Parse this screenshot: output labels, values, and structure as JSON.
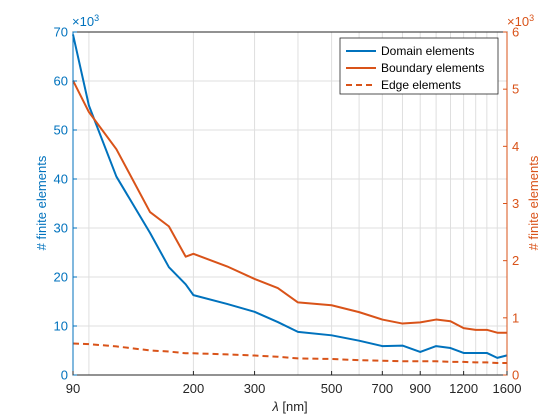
{
  "chart_data": {
    "type": "line",
    "xlabel_symbol": "λ",
    "xlabel_unit": "[nm]",
    "x_scale": "log",
    "xlim": [
      90,
      1600
    ],
    "x_ticks": [
      90,
      200,
      300,
      500,
      700,
      900,
      1200,
      1600
    ],
    "x_tick_labels": [
      "90",
      "200",
      "300",
      "500",
      "700",
      "900",
      "1200",
      "1600"
    ],
    "grid": true,
    "legend_position": "top-right",
    "left_axis": {
      "label": "# finite elements",
      "color": "#0072BD",
      "ylim": [
        0,
        70
      ],
      "ticks": [
        0,
        10,
        20,
        30,
        40,
        50,
        60,
        70
      ],
      "tick_labels": [
        "0",
        "10",
        "20",
        "30",
        "40",
        "50",
        "60",
        "70"
      ],
      "exponent_prefix": "×10",
      "exponent": "3"
    },
    "right_axis": {
      "label": "# finite elements",
      "color": "#D95319",
      "ylim": [
        0,
        6
      ],
      "ticks": [
        0,
        1,
        2,
        3,
        4,
        5,
        6
      ],
      "tick_labels": [
        "0",
        "1",
        "2",
        "3",
        "4",
        "5",
        "6"
      ],
      "exponent_prefix": "×10",
      "exponent": "3"
    },
    "series": [
      {
        "name": "Domain elements",
        "axis": "left",
        "color": "#0072BD",
        "style": "solid",
        "x": [
          90,
          100,
          120,
          150,
          170,
          190,
          200,
          250,
          300,
          350,
          400,
          500,
          600,
          700,
          800,
          900,
          1000,
          1100,
          1200,
          1300,
          1400,
          1500,
          1600
        ],
        "y": [
          69.5,
          55,
          40.5,
          29,
          22,
          18.5,
          16.3,
          14.5,
          12.9,
          10.8,
          8.8,
          8.1,
          7,
          5.9,
          6,
          4.7,
          5.9,
          5.5,
          4.5,
          4.5,
          4.5,
          3.5,
          4
        ]
      },
      {
        "name": "Boundary elements",
        "axis": "right",
        "color": "#D95319",
        "style": "solid",
        "x": [
          90,
          100,
          120,
          150,
          170,
          190,
          200,
          250,
          300,
          350,
          400,
          500,
          600,
          700,
          800,
          900,
          1000,
          1100,
          1200,
          1300,
          1400,
          1500,
          1600
        ],
        "y": [
          5.15,
          4.6,
          3.95,
          2.85,
          2.6,
          2.07,
          2.12,
          1.9,
          1.68,
          1.52,
          1.27,
          1.22,
          1.1,
          0.97,
          0.9,
          0.92,
          0.97,
          0.94,
          0.82,
          0.79,
          0.79,
          0.74,
          0.74
        ]
      },
      {
        "name": "Edge elements",
        "axis": "right",
        "color": "#D95319",
        "style": "dashed",
        "x": [
          90,
          100,
          120,
          150,
          170,
          190,
          200,
          250,
          300,
          350,
          400,
          500,
          600,
          700,
          800,
          900,
          1000,
          1100,
          1200,
          1300,
          1400,
          1500,
          1600
        ],
        "y": [
          0.55,
          0.54,
          0.5,
          0.43,
          0.41,
          0.38,
          0.38,
          0.36,
          0.34,
          0.32,
          0.29,
          0.28,
          0.26,
          0.25,
          0.24,
          0.24,
          0.24,
          0.23,
          0.23,
          0.22,
          0.22,
          0.21,
          0.21
        ]
      }
    ]
  }
}
